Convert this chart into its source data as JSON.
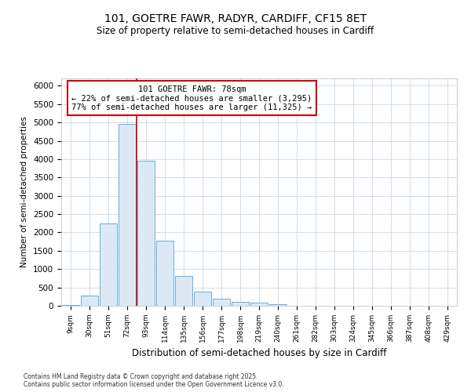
{
  "title_line1": "101, GOETRE FAWR, RADYR, CARDIFF, CF15 8ET",
  "title_line2": "Size of property relative to semi-detached houses in Cardiff",
  "xlabel": "Distribution of semi-detached houses by size in Cardiff",
  "ylabel": "Number of semi-detached properties",
  "categories": [
    "9sqm",
    "30sqm",
    "51sqm",
    "72sqm",
    "93sqm",
    "114sqm",
    "135sqm",
    "156sqm",
    "177sqm",
    "198sqm",
    "219sqm",
    "240sqm",
    "261sqm",
    "282sqm",
    "303sqm",
    "324sqm",
    "345sqm",
    "366sqm",
    "387sqm",
    "408sqm",
    "429sqm"
  ],
  "values": [
    20,
    280,
    2250,
    4950,
    3950,
    1780,
    820,
    380,
    200,
    105,
    80,
    50,
    0,
    0,
    0,
    0,
    0,
    0,
    0,
    0,
    0
  ],
  "bar_color": "#dce9f5",
  "bar_edge_color": "#6aaed6",
  "property_label": "101 GOETRE FAWR: 78sqm",
  "pct_smaller": 22,
  "pct_larger": 77,
  "count_smaller": 3295,
  "count_larger": 11325,
  "vline_color": "#cc0000",
  "ylim": [
    0,
    6200
  ],
  "yticks": [
    0,
    500,
    1000,
    1500,
    2000,
    2500,
    3000,
    3500,
    4000,
    4500,
    5000,
    5500,
    6000
  ],
  "grid_color": "#c8d8ea",
  "background_color": "#ffffff",
  "footer_line1": "Contains HM Land Registry data © Crown copyright and database right 2025.",
  "footer_line2": "Contains public sector information licensed under the Open Government Licence v3.0."
}
